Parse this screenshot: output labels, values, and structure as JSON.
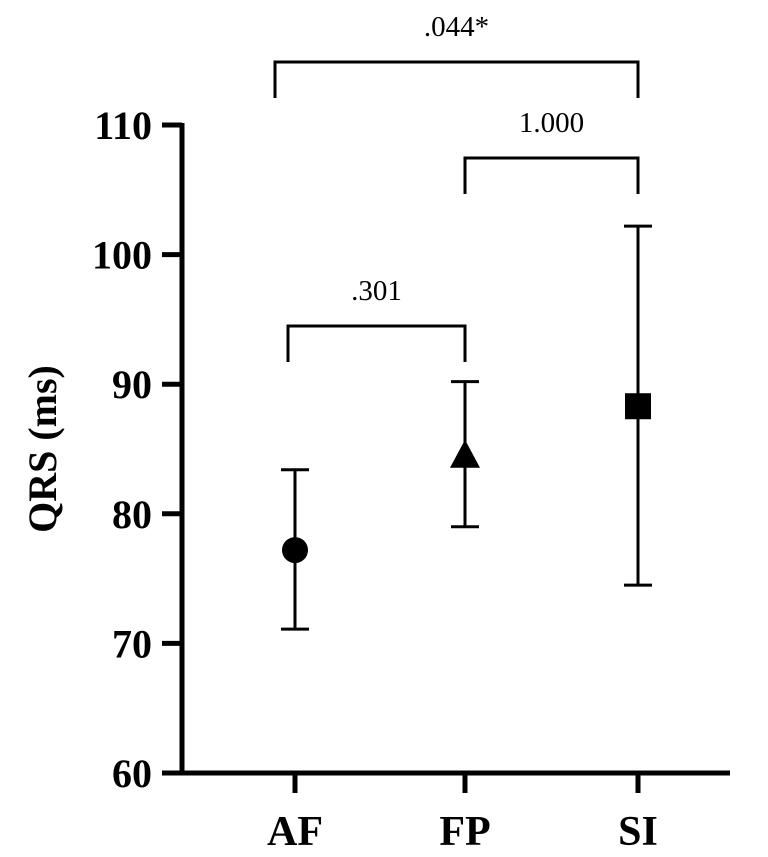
{
  "chart_data": {
    "type": "scatter",
    "ylabel": "QRS (ms)",
    "xlabel": "",
    "ylim": [
      60,
      110
    ],
    "yticks": [
      "60",
      "70",
      "80",
      "90",
      "100",
      "110"
    ],
    "categories": [
      "AF",
      "FP",
      "SI"
    ],
    "points": [
      {
        "category": "AF",
        "mean": 77.2,
        "lower": 71.1,
        "upper": 83.4,
        "marker": "circle"
      },
      {
        "category": "FP",
        "mean": 84.4,
        "lower": 79.0,
        "upper": 90.2,
        "marker": "triangle"
      },
      {
        "category": "SI",
        "mean": 88.3,
        "lower": 74.5,
        "upper": 102.2,
        "marker": "square"
      }
    ],
    "comparisons": [
      {
        "from": "AF",
        "to": "FP",
        "label": ".301"
      },
      {
        "from": "FP",
        "to": "SI",
        "label": "1.000"
      },
      {
        "from": "AF",
        "to": "SI",
        "label": ".044*"
      }
    ],
    "grid": false,
    "colors": {
      "marker": "#000000",
      "line": "#000000"
    }
  }
}
